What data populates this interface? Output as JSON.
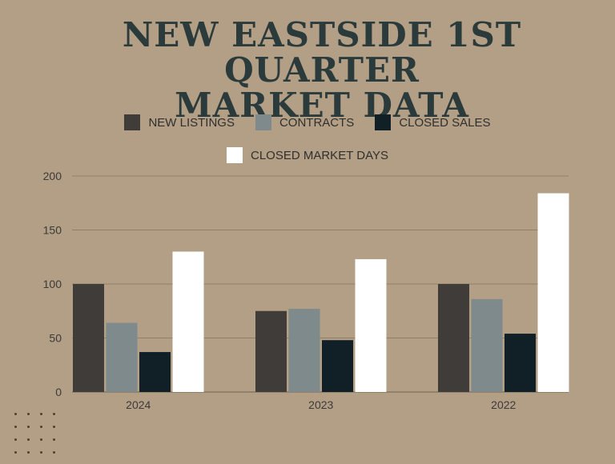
{
  "title_line1": "NEW EASTSIDE 1ST QUARTER",
  "title_line2": "MARKET DATA",
  "colors": {
    "background": "#b39f85",
    "title": "#2b3a3b",
    "grid": "#8f7f6a"
  },
  "chart_data": {
    "type": "bar",
    "categories": [
      "2024",
      "2023",
      "2022"
    ],
    "series": [
      {
        "name": "NEW LISTINGS",
        "color": "#3f3c39",
        "values": [
          100,
          75,
          100
        ]
      },
      {
        "name": "CONTRACTS",
        "color": "#7f8a8c",
        "values": [
          64,
          77,
          86
        ]
      },
      {
        "name": "CLOSED SALES",
        "color": "#112026",
        "values": [
          37,
          48,
          54
        ]
      },
      {
        "name": "CLOSED MARKET DAYS",
        "color": "#ffffff",
        "values": [
          130,
          123,
          184
        ]
      }
    ],
    "yticks": [
      "0",
      "50",
      "100",
      "150",
      "200"
    ],
    "ylim": [
      0,
      200
    ],
    "grid": true,
    "legend_position": "top"
  }
}
